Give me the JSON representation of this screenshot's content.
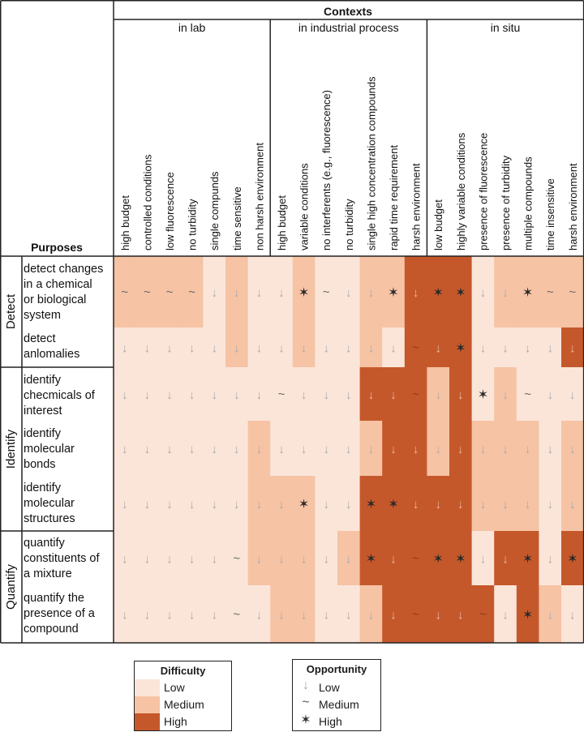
{
  "header": {
    "contexts_title": "Contexts",
    "purposes_label": "Purposes"
  },
  "context_groups": [
    {
      "label": "in lab",
      "factors": [
        "high budget",
        "controlled conditions",
        "low fluorescence",
        "no turbidity",
        "single compunds",
        "time sensitive",
        "non harsh environment"
      ]
    },
    {
      "label": "in industrial process",
      "factors": [
        "high budget",
        "variable conditions",
        "no interferents (e.g.,  fluorescence)",
        "no turbidity",
        "single high concentration compounds",
        "rapid time requirement",
        "harsh environment"
      ]
    },
    {
      "label": "in situ",
      "factors": [
        "low budget",
        "highly variable conditions",
        "presence of fluorescence",
        "presence of turbidity",
        "multiple compounds",
        "time insensitive",
        "harsh environment"
      ]
    }
  ],
  "purpose_groups": [
    {
      "label": "Detect",
      "purposes": [
        "detect changes in a chemical or biological system",
        "detect anlomalies"
      ]
    },
    {
      "label": "Identify",
      "purposes": [
        "identify checmicals of interest",
        "identify molecular bonds",
        "identify molecular structures"
      ]
    },
    {
      "label": "Quantify",
      "purposes": [
        "quantify constituents of a mixture",
        "quantify the presence of a compound"
      ]
    }
  ],
  "purpose_lines": [
    [
      "detect changes",
      "in a chemical",
      "or biological",
      "system"
    ],
    [
      "detect",
      "anlomalies"
    ],
    [
      "identify",
      "checmicals of",
      "interest"
    ],
    [
      "identify",
      "molecular",
      "bonds"
    ],
    [
      "identify",
      "molecular",
      "structures"
    ],
    [
      "quantify",
      "constituents of",
      "a mixture"
    ],
    [
      "quantify the",
      "presence of a",
      "compound"
    ]
  ],
  "difficulty_colors": {
    "low": "#fbe5d9",
    "medium": "#f6c3a5",
    "high": "#c5582b"
  },
  "chart_data": {
    "type": "heatmap",
    "difficulty_scale": [
      "Low",
      "Medium",
      "High"
    ],
    "opportunity_scale": [
      "Low",
      "Medium",
      "High"
    ],
    "difficulty": [
      [
        "M",
        "M",
        "M",
        "M",
        "L",
        "M",
        "L",
        "L",
        "M",
        "L",
        "L",
        "M",
        "M",
        "H",
        "H",
        "H",
        "L",
        "M",
        "M",
        "M",
        "M"
      ],
      [
        "L",
        "L",
        "L",
        "L",
        "L",
        "M",
        "L",
        "L",
        "M",
        "L",
        "L",
        "M",
        "L",
        "H",
        "H",
        "H",
        "L",
        "L",
        "L",
        "L",
        "H"
      ],
      [
        "L",
        "L",
        "L",
        "L",
        "L",
        "L",
        "L",
        "L",
        "L",
        "L",
        "L",
        "H",
        "H",
        "H",
        "M",
        "H",
        "L",
        "M",
        "L",
        "L",
        "L"
      ],
      [
        "L",
        "L",
        "L",
        "L",
        "L",
        "L",
        "M",
        "L",
        "L",
        "L",
        "L",
        "M",
        "H",
        "H",
        "M",
        "H",
        "M",
        "M",
        "M",
        "L",
        "M"
      ],
      [
        "L",
        "L",
        "L",
        "L",
        "L",
        "L",
        "M",
        "M",
        "M",
        "L",
        "L",
        "H",
        "H",
        "H",
        "H",
        "H",
        "M",
        "M",
        "M",
        "L",
        "M"
      ],
      [
        "L",
        "L",
        "L",
        "L",
        "L",
        "L",
        "M",
        "M",
        "M",
        "L",
        "M",
        "H",
        "H",
        "H",
        "H",
        "H",
        "L",
        "H",
        "H",
        "L",
        "H"
      ],
      [
        "L",
        "L",
        "L",
        "L",
        "L",
        "L",
        "L",
        "M",
        "M",
        "L",
        "L",
        "M",
        "H",
        "H",
        "H",
        "H",
        "H",
        "L",
        "H",
        "M",
        "L"
      ]
    ],
    "opportunity": [
      [
        "M",
        "M",
        "M",
        "M",
        "L",
        "L",
        "L",
        "L",
        "H",
        "M",
        "L",
        "L",
        "H",
        "L",
        "H",
        "H",
        "L",
        "L",
        "H",
        "M",
        "M"
      ],
      [
        "L",
        "L",
        "L",
        "L",
        "L",
        "L",
        "L",
        "L",
        "L",
        "L",
        "L",
        "L",
        "L",
        "M",
        "L",
        "H",
        "L",
        "L",
        "L",
        "L",
        "L"
      ],
      [
        "L",
        "L",
        "L",
        "L",
        "L",
        "L",
        "L",
        "M",
        "L",
        "L",
        "L",
        "L",
        "L",
        "M",
        "L",
        "L",
        "H",
        "L",
        "M",
        "L",
        "L"
      ],
      [
        "L",
        "L",
        "L",
        "L",
        "L",
        "L",
        "L",
        "L",
        "L",
        "L",
        "L",
        "L",
        "L",
        "L",
        "L",
        "L",
        "L",
        "L",
        "L",
        "L",
        "L"
      ],
      [
        "L",
        "L",
        "L",
        "L",
        "L",
        "L",
        "L",
        "L",
        "H",
        "L",
        "L",
        "H",
        "H",
        "L",
        "L",
        "L",
        "L",
        "L",
        "L",
        "L",
        "L"
      ],
      [
        "L",
        "L",
        "L",
        "L",
        "L",
        "M",
        "L",
        "L",
        "L",
        "L",
        "L",
        "H",
        "L",
        "M",
        "H",
        "H",
        "L",
        "L",
        "H",
        "L",
        "H"
      ],
      [
        "L",
        "L",
        "L",
        "L",
        "L",
        "M",
        "L",
        "L",
        "L",
        "L",
        "L",
        "L",
        "L",
        "M",
        "L",
        "L",
        "M",
        "L",
        "H",
        "L",
        "L"
      ]
    ]
  },
  "legend": {
    "difficulty": {
      "title": "Difficulty",
      "items": [
        "Low",
        "Medium",
        "High"
      ]
    },
    "opportunity": {
      "title": "Opportunity",
      "items": [
        "Low",
        "Medium",
        "High"
      ],
      "icons": [
        "down-arrow-icon",
        "tilde-icon",
        "star-icon"
      ]
    }
  }
}
